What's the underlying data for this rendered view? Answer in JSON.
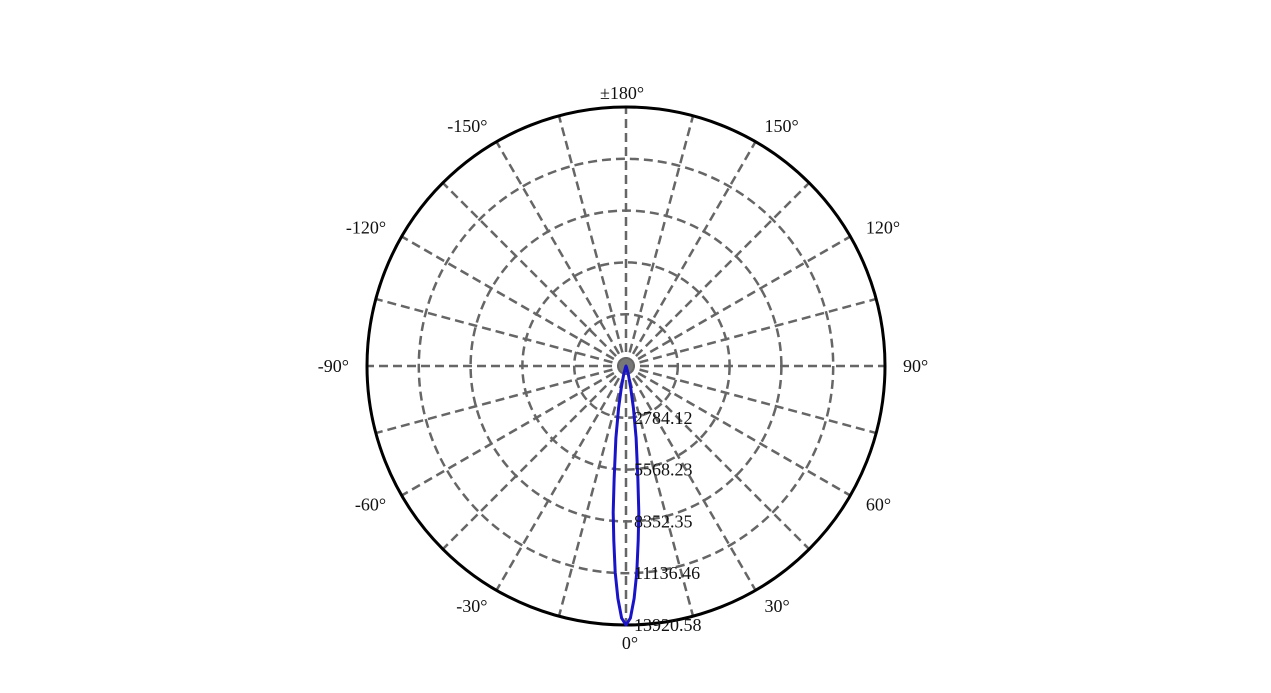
{
  "chart_data": {
    "type": "polar",
    "angle_labels": [
      {
        "deg": 0,
        "label": "0°"
      },
      {
        "deg": 30,
        "label": "30°"
      },
      {
        "deg": 60,
        "label": "60°"
      },
      {
        "deg": 90,
        "label": "90°"
      },
      {
        "deg": 120,
        "label": "120°"
      },
      {
        "deg": 150,
        "label": "150°"
      },
      {
        "deg": 180,
        "label": "±180°"
      },
      {
        "deg": -150,
        "label": "-150°"
      },
      {
        "deg": -120,
        "label": "-120°"
      },
      {
        "deg": -90,
        "label": "-90°"
      },
      {
        "deg": -60,
        "label": "-60°"
      },
      {
        "deg": -30,
        "label": "-30°"
      }
    ],
    "spoke_step_deg": 15,
    "radial_ticks": [
      2784.12,
      5568.23,
      8352.35,
      11136.46,
      13920.58
    ],
    "radial_tick_labels": [
      "2784.12",
      "5568.23",
      "8352.35",
      "11136.46",
      "13920.58"
    ],
    "rmax": 13920.58,
    "grid": true,
    "series": [
      {
        "color": "#1a14c8",
        "points": [
          {
            "angle": -180,
            "value": 0
          },
          {
            "angle": -30,
            "value": 0
          },
          {
            "angle": -20,
            "value": 80
          },
          {
            "angle": -15,
            "value": 520
          },
          {
            "angle": -12,
            "value": 1250
          },
          {
            "angle": -10,
            "value": 2300
          },
          {
            "angle": -8,
            "value": 3900
          },
          {
            "angle": -6,
            "value": 6100
          },
          {
            "angle": -5,
            "value": 7900
          },
          {
            "angle": -4,
            "value": 9400
          },
          {
            "angle": -3,
            "value": 11100
          },
          {
            "angle": -2,
            "value": 12500
          },
          {
            "angle": -1,
            "value": 13550
          },
          {
            "angle": 0,
            "value": 13920.58
          },
          {
            "angle": 1,
            "value": 13550
          },
          {
            "angle": 2,
            "value": 12500
          },
          {
            "angle": 3,
            "value": 11100
          },
          {
            "angle": 4,
            "value": 9400
          },
          {
            "angle": 5,
            "value": 7900
          },
          {
            "angle": 6,
            "value": 6100
          },
          {
            "angle": 8,
            "value": 3900
          },
          {
            "angle": 10,
            "value": 2300
          },
          {
            "angle": 12,
            "value": 1250
          },
          {
            "angle": 15,
            "value": 520
          },
          {
            "angle": 20,
            "value": 80
          },
          {
            "angle": 30,
            "value": 0
          },
          {
            "angle": 180,
            "value": 0
          }
        ]
      }
    ]
  }
}
